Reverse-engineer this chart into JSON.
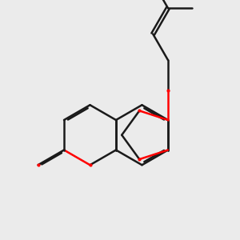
{
  "bg_color": "#ebebeb",
  "bond_color": "#1a1a1a",
  "oxygen_color": "#ff0000",
  "lw": 1.8,
  "dbo": 0.055,
  "figsize": [
    3.0,
    3.0
  ],
  "dpi": 100,
  "xlim": [
    -0.5,
    6.5
  ],
  "ylim": [
    -0.5,
    7.5
  ]
}
